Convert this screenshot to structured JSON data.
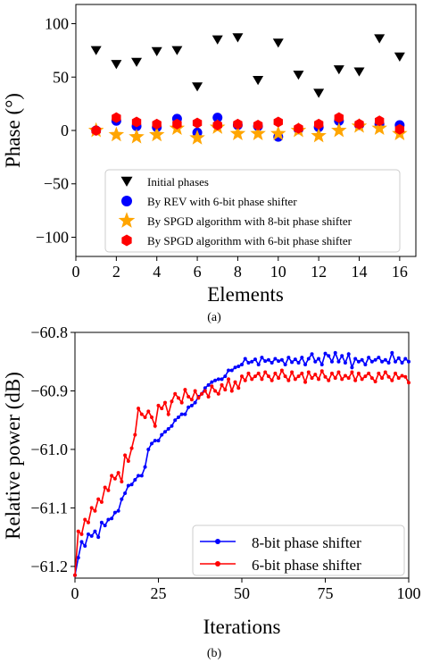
{
  "chart_data": [
    {
      "type": "scatter",
      "caption": "(a)",
      "xlabel": "Elements",
      "ylabel": "Phase (°)",
      "xlim": [
        0,
        16.8
      ],
      "ylim": [
        -118,
        118
      ],
      "xticks": [
        0,
        2,
        4,
        6,
        8,
        10,
        12,
        14,
        16
      ],
      "yticks": [
        100,
        50,
        0,
        -50,
        -100
      ],
      "ytick_labels": [
        "100",
        "50",
        "0",
        "−50",
        "−100"
      ],
      "grid": false,
      "legend_position": "lower-center",
      "x": [
        1,
        2,
        3,
        4,
        5,
        6,
        7,
        8,
        9,
        10,
        11,
        12,
        13,
        14,
        15,
        16
      ],
      "series": [
        {
          "name": "Initial phases",
          "marker": "triangle-down",
          "color": "#000000",
          "values": [
            75,
            62,
            64,
            74,
            75,
            41,
            85,
            87,
            47,
            82,
            52,
            35,
            57,
            55,
            86,
            69
          ]
        },
        {
          "name": "By REV with 6-bit phase shifter",
          "marker": "circle",
          "color": "#0000ff",
          "values": [
            0,
            9,
            4,
            3,
            11,
            -2,
            12,
            5,
            4,
            -6,
            1,
            3,
            9,
            5,
            6,
            5
          ]
        },
        {
          "name": "By SPGD algorithm with 8-bit phase shifter",
          "marker": "star",
          "color": "#ffa500",
          "values": [
            0,
            -4,
            -6,
            -4,
            2,
            -7,
            3,
            -3,
            -3,
            -3,
            0,
            -5,
            0,
            4,
            2,
            -3
          ]
        },
        {
          "name": "By SPGD algorithm with 6-bit phase shifter",
          "marker": "hexagon",
          "color": "#ff0000",
          "values": [
            0,
            12,
            8,
            6,
            6,
            7,
            5,
            6,
            5,
            8,
            2,
            6,
            12,
            6,
            9,
            1
          ]
        }
      ]
    },
    {
      "type": "line",
      "caption": "(b)",
      "xlabel": "Iterations",
      "ylabel": "Relative power (dB)",
      "xlim": [
        0,
        100
      ],
      "ylim": [
        -61.22,
        -60.8
      ],
      "xticks": [
        0,
        25,
        50,
        75,
        100
      ],
      "yticks": [
        -60.8,
        -60.9,
        -61.0,
        -61.1,
        -61.2
      ],
      "ytick_labels": [
        "−60.8",
        "−60.9",
        "−61.0",
        "−61.1",
        "−61.2"
      ],
      "grid": false,
      "legend_position": "lower-right",
      "series": [
        {
          "name": "8-bit phase shifter",
          "color": "#0000ff",
          "marker": "circle",
          "values": [
            -61.215,
            -61.185,
            -61.158,
            -61.165,
            -61.145,
            -61.148,
            -61.14,
            -61.15,
            -61.125,
            -61.13,
            -61.12,
            -61.118,
            -61.108,
            -61.105,
            -61.085,
            -61.075,
            -61.062,
            -61.06,
            -61.052,
            -61.045,
            -61.045,
            -61.03,
            -61.0,
            -60.99,
            -60.985,
            -60.985,
            -60.975,
            -60.97,
            -60.965,
            -60.96,
            -60.95,
            -60.945,
            -60.94,
            -60.94,
            -60.928,
            -60.925,
            -60.92,
            -60.91,
            -60.905,
            -60.895,
            -60.89,
            -60.885,
            -60.882,
            -60.88,
            -60.88,
            -60.875,
            -60.865,
            -60.865,
            -60.86,
            -60.858,
            -60.855,
            -60.845,
            -60.852,
            -60.85,
            -60.846,
            -60.855,
            -60.843,
            -60.849,
            -60.847,
            -60.852,
            -60.845,
            -60.849,
            -60.847,
            -60.855,
            -60.843,
            -60.851,
            -60.846,
            -60.852,
            -60.843,
            -60.855,
            -60.845,
            -60.837,
            -60.85,
            -60.845,
            -60.855,
            -60.836,
            -60.84,
            -60.85,
            -60.835,
            -60.85,
            -60.84,
            -60.852,
            -60.837,
            -60.86,
            -60.845,
            -60.85,
            -60.847,
            -60.855,
            -60.843,
            -60.85,
            -60.847,
            -60.843,
            -60.85,
            -60.847,
            -60.852,
            -60.835,
            -60.85,
            -60.844,
            -60.852,
            -60.845,
            -60.85
          ]
        },
        {
          "name": "6-bit phase shifter",
          "color": "#ff0000",
          "marker": "circle",
          "values": [
            -61.215,
            -61.14,
            -61.145,
            -61.12,
            -61.125,
            -61.1,
            -61.105,
            -61.085,
            -61.09,
            -61.065,
            -61.07,
            -61.045,
            -61.05,
            -61.04,
            -61.055,
            -61.01,
            -61.02,
            -60.998,
            -60.975,
            -60.93,
            -60.94,
            -60.945,
            -60.935,
            -60.945,
            -60.96,
            -60.925,
            -60.93,
            -60.92,
            -60.94,
            -60.918,
            -60.905,
            -60.912,
            -60.92,
            -60.898,
            -60.91,
            -60.915,
            -60.9,
            -60.912,
            -60.905,
            -60.9,
            -60.91,
            -60.892,
            -60.9,
            -60.905,
            -60.89,
            -60.898,
            -60.88,
            -60.9,
            -60.885,
            -60.895,
            -60.875,
            -60.882,
            -60.87,
            -60.88,
            -60.875,
            -60.87,
            -60.88,
            -60.868,
            -60.875,
            -60.882,
            -60.87,
            -60.878,
            -60.865,
            -60.875,
            -60.882,
            -60.868,
            -60.88,
            -60.875,
            -60.87,
            -60.885,
            -60.868,
            -60.878,
            -60.872,
            -60.88,
            -60.866,
            -60.876,
            -60.882,
            -60.87,
            -60.878,
            -60.868,
            -60.88,
            -60.874,
            -60.878,
            -60.868,
            -60.882,
            -60.87,
            -60.88,
            -60.875,
            -60.87,
            -60.878,
            -60.884,
            -60.87,
            -60.878,
            -60.868,
            -60.876,
            -60.882,
            -60.87,
            -60.878,
            -60.874,
            -60.876,
            -60.886
          ]
        }
      ]
    }
  ]
}
